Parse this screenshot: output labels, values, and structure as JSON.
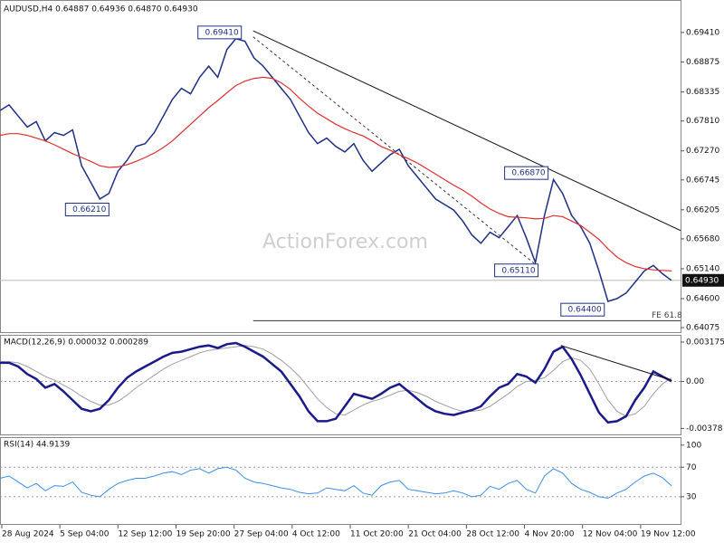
{
  "chart_data": {
    "type": "trading",
    "title": "AUDUSD,H4  0.64887 0.64936 0.64870 0.64930",
    "watermark": "ActionForex.com",
    "xlim": [
      0,
      75
    ],
    "xticks": [
      {
        "value": 0,
        "label": "28 Aug 2024"
      },
      {
        "value": 6.4,
        "label": "5 Sep 04:00"
      },
      {
        "value": 12.8,
        "label": "12 Sep 12:00"
      },
      {
        "value": 19.2,
        "label": "19 Sep 20:00"
      },
      {
        "value": 25.6,
        "label": "27 Sep 04:00"
      },
      {
        "value": 32,
        "label": "4 Oct 12:00"
      },
      {
        "value": 38.4,
        "label": "11 Oct 20:00"
      },
      {
        "value": 44.8,
        "label": "21 Oct 04:00"
      },
      {
        "value": 51.2,
        "label": "28 Oct 12:00"
      },
      {
        "value": 57.6,
        "label": "4 Nov 20:00"
      },
      {
        "value": 64,
        "label": "12 Nov 04:00"
      },
      {
        "value": 70.4,
        "label": "19 Nov 12:00"
      }
    ],
    "price": {
      "ylim": [
        0.63994,
        0.6998
      ],
      "yticks": [
        {
          "value": 0.6941,
          "label": "0.69410"
        },
        {
          "value": 0.68875,
          "label": "0.68875"
        },
        {
          "value": 0.68335,
          "label": "0.68335"
        },
        {
          "value": 0.6781,
          "label": "0.67810"
        },
        {
          "value": 0.6727,
          "label": "0.67270"
        },
        {
          "value": 0.66745,
          "label": "0.66745"
        },
        {
          "value": 0.66205,
          "label": "0.66205"
        },
        {
          "value": 0.6568,
          "label": "0.65680"
        },
        {
          "value": 0.6514,
          "label": "0.65140"
        },
        {
          "value": 0.646,
          "label": "0.64600"
        },
        {
          "value": 0.64075,
          "label": "0.64075"
        }
      ],
      "series": [
        {
          "name": "AUDUSD",
          "color": "#1f2f86",
          "values": [
            0.68,
            0.681,
            0.679,
            0.677,
            0.678,
            0.6745,
            0.676,
            0.6755,
            0.6765,
            0.67,
            0.667,
            0.664,
            0.665,
            0.669,
            0.671,
            0.6735,
            0.674,
            0.676,
            0.679,
            0.682,
            0.684,
            0.683,
            0.686,
            0.688,
            0.686,
            0.691,
            0.693,
            0.6925,
            0.6895,
            0.688,
            0.686,
            0.684,
            0.682,
            0.679,
            0.676,
            0.674,
            0.675,
            0.6735,
            0.6725,
            0.674,
            0.671,
            0.669,
            0.6705,
            0.672,
            0.673,
            0.67,
            0.668,
            0.666,
            0.664,
            0.663,
            0.662,
            0.66,
            0.6575,
            0.656,
            0.658,
            0.657,
            0.659,
            0.661,
            0.657,
            0.6525,
            0.661,
            0.6675,
            0.665,
            0.661,
            0.659,
            0.656,
            0.651,
            0.6455,
            0.646,
            0.647,
            0.649,
            0.651,
            0.652,
            0.6505,
            0.6493
          ]
        },
        {
          "name": "MA",
          "color": "#e03030",
          "values": [
            0.6755,
            0.6758,
            0.6758,
            0.6755,
            0.675,
            0.6745,
            0.6738,
            0.673,
            0.6722,
            0.6715,
            0.6708,
            0.67,
            0.6697,
            0.6698,
            0.6702,
            0.6708,
            0.6715,
            0.6723,
            0.6733,
            0.6745,
            0.676,
            0.6775,
            0.679,
            0.6805,
            0.6818,
            0.6832,
            0.6845,
            0.6853,
            0.6858,
            0.686,
            0.6858,
            0.685,
            0.6838,
            0.6822,
            0.6808,
            0.6795,
            0.6785,
            0.6775,
            0.6767,
            0.676,
            0.6754,
            0.6745,
            0.6735,
            0.6728,
            0.672,
            0.6713,
            0.6705,
            0.6695,
            0.6685,
            0.6675,
            0.6665,
            0.6656,
            0.6645,
            0.6633,
            0.6622,
            0.6614,
            0.6608,
            0.6607,
            0.6606,
            0.6604,
            0.6605,
            0.661,
            0.6608,
            0.66,
            0.6592,
            0.658,
            0.6567,
            0.655,
            0.6535,
            0.6525,
            0.6518,
            0.6514,
            0.6512,
            0.6511,
            0.651
          ]
        }
      ],
      "annotations": [
        {
          "x": 26.6,
          "value": 0.6941,
          "label": "0.69410"
        },
        {
          "x": 12,
          "value": 0.6621,
          "label": "0.66210"
        },
        {
          "x": 60.4,
          "value": 0.6687,
          "label": "0.66870"
        },
        {
          "x": 59.3,
          "value": 0.6511,
          "label": "0.65110"
        },
        {
          "x": 66.6,
          "value": 0.644,
          "label": "0.64400"
        }
      ],
      "trendline": {
        "x": [
          27.9,
          75
        ],
        "values": [
          0.6944,
          0.6583
        ]
      },
      "dashed_line": {
        "x": [
          27.9,
          59.3
        ],
        "values": [
          0.6933,
          0.6518
        ]
      },
      "fe_line": {
        "x": [
          27.9,
          75
        ],
        "value": 0.642,
        "label": "FE 61.8"
      },
      "current": {
        "value": 0.6493,
        "label": "0.64930"
      }
    },
    "macd": {
      "title": "MACD(12,26,9) 0.000032 0.000289",
      "ylim": [
        -0.00426,
        0.00368
      ],
      "yticks": [
        0.003175,
        {
          "value": 0,
          "label": "0.00"
        },
        -0.00378
      ],
      "series": [
        {
          "name": "MACD",
          "color": "#1a1a8c",
          "values": [
            0.0015,
            0.0015,
            0.0012,
            0.0006,
            0.0002,
            -0.0005,
            -0.0002,
            -0.0008,
            -0.0015,
            -0.0022,
            -0.0024,
            -0.0022,
            -0.0015,
            -0.0005,
            0.0003,
            0.0008,
            0.0012,
            0.0016,
            0.002,
            0.0023,
            0.0024,
            0.0026,
            0.0028,
            0.0029,
            0.0027,
            0.003,
            0.0031,
            0.0028,
            0.0024,
            0.002,
            0.0014,
            0.0008,
            -0.0002,
            -0.0012,
            -0.0024,
            -0.0032,
            -0.0032,
            -0.003,
            -0.002,
            -0.001,
            -0.0012,
            -0.0014,
            -0.001,
            -0.0005,
            -0.0002,
            -0.0008,
            -0.0014,
            -0.002,
            -0.0024,
            -0.0026,
            -0.0027,
            -0.0025,
            -0.0023,
            -0.002,
            -0.0012,
            -0.0005,
            -0.0002,
            0.0006,
            0.0004,
            -0.0001,
            0.001,
            0.0024,
            0.0028,
            0.0018,
            0.0005,
            -0.001,
            -0.0025,
            -0.0033,
            -0.0032,
            -0.0028,
            -0.0015,
            -0.0005,
            0.0008,
            0.0004,
            3.2e-05
          ]
        },
        {
          "name": "Signal",
          "color": "#a0a0a0",
          "values": [
            0.0016,
            0.0016,
            0.0015,
            0.0012,
            0.0008,
            0.0004,
            0.0001,
            -0.0003,
            -0.0007,
            -0.0012,
            -0.0016,
            -0.0019,
            -0.0019,
            -0.0016,
            -0.0011,
            -0.0005,
            0,
            0.0005,
            0.001,
            0.0014,
            0.0017,
            0.002,
            0.0023,
            0.0025,
            0.0026,
            0.0027,
            0.0028,
            0.0029,
            0.0028,
            0.0026,
            0.0022,
            0.0017,
            0.0011,
            0.0004,
            -0.0005,
            -0.0014,
            -0.0021,
            -0.0026,
            -0.0027,
            -0.0023,
            -0.0019,
            -0.0016,
            -0.0014,
            -0.0011,
            -0.0008,
            -0.0007,
            -0.0009,
            -0.0012,
            -0.0016,
            -0.0019,
            -0.0022,
            -0.0024,
            -0.0024,
            -0.0023,
            -0.002,
            -0.0015,
            -0.001,
            -0.0004,
            0,
            0.0001,
            0.0003,
            0.0009,
            0.0016,
            0.0019,
            0.0017,
            0.001,
            -0.0002,
            -0.0015,
            -0.0024,
            -0.0028,
            -0.0026,
            -0.002,
            -0.001,
            -0.0002,
            0.000289
          ]
        }
      ],
      "trendline": {
        "x": [
          61.8,
          74
        ],
        "values": [
          0.0029,
          0.0001
        ]
      }
    },
    "rsi": {
      "title": "RSI(14) 44.9139",
      "ylim": [
        -7,
        109.6
      ],
      "yticks": [
        100,
        70,
        30
      ],
      "levels": [
        70,
        30
      ],
      "series": [
        {
          "name": "RSI",
          "color": "#3a8ee6",
          "values": [
            55,
            58,
            50,
            42,
            48,
            38,
            45,
            44,
            50,
            36,
            32,
            30,
            40,
            48,
            52,
            55,
            55,
            58,
            62,
            64,
            60,
            66,
            68,
            62,
            68,
            70,
            66,
            55,
            50,
            48,
            45,
            42,
            40,
            36,
            34,
            35,
            42,
            40,
            38,
            45,
            35,
            32,
            45,
            50,
            52,
            40,
            38,
            36,
            34,
            35,
            38,
            35,
            30,
            32,
            44,
            40,
            48,
            52,
            40,
            35,
            58,
            68,
            62,
            48,
            40,
            36,
            30,
            28,
            35,
            40,
            50,
            58,
            62,
            56,
            44.9139
          ]
        }
      ]
    }
  }
}
